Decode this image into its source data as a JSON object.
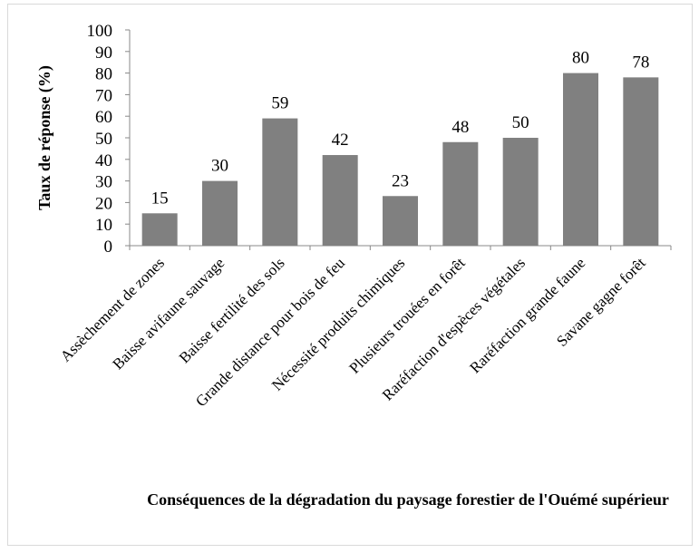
{
  "chart_data": {
    "type": "bar",
    "categories": [
      "Assèchement de zones",
      "Baisse avifaune sauvage",
      "Baisse fertilité des sols",
      "Grande distance pour bois de feu",
      "Nécessité produits chimiques",
      "Plusieurs trouées en forêt",
      "Raréfaction d'espèces végétales",
      "Raréfaction grande faune",
      "Savane gagne forêt"
    ],
    "values": [
      15,
      30,
      59,
      42,
      23,
      48,
      50,
      80,
      78
    ],
    "ylabel": "Taux de réponse (%)",
    "xlabel": "Conséquences de la dégradation du paysage forestier de l'Ouémé supérieur",
    "ylim": [
      0,
      100
    ],
    "yticks": [
      "0",
      "10",
      "20",
      "30",
      "40",
      "50",
      "60",
      "70",
      "80",
      "90",
      "100"
    ],
    "grid": false,
    "legend": "none",
    "bar_color": "#808080"
  }
}
